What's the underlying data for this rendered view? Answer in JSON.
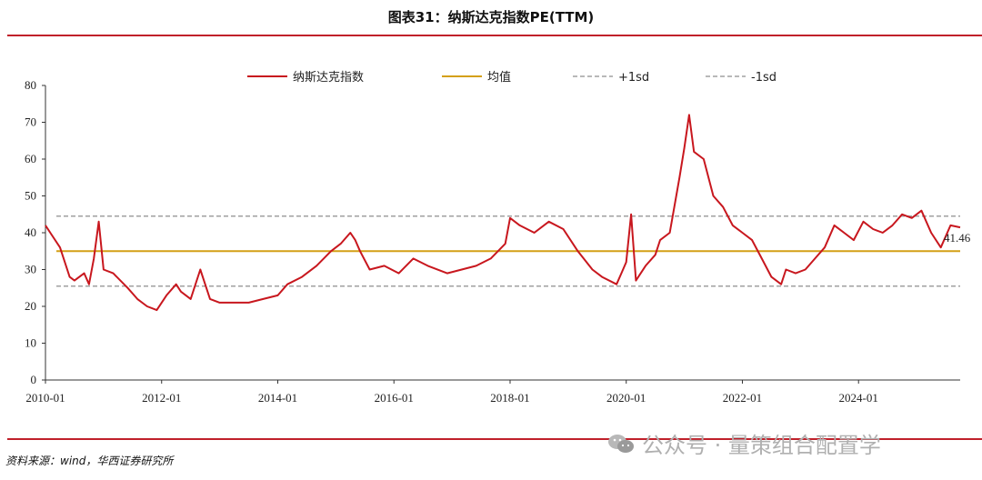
{
  "header": {
    "title": "图表31：纳斯达克指数PE(TTM)"
  },
  "footer": {
    "source": "资料来源：wind，华西证券研究所",
    "watermark": "公众号 · 量策组合配置学",
    "watermark_icon": "wechat-icon"
  },
  "colors": {
    "series": "#c8171e",
    "mean": "#d4a017",
    "sd": "#a0a0a0",
    "rule": "#c0202a"
  },
  "chart_data": {
    "type": "line",
    "title": "",
    "xlabel": "",
    "ylabel": "",
    "ylim": [
      0,
      80
    ],
    "yticks": [
      0,
      10,
      20,
      30,
      40,
      50,
      60,
      70,
      80
    ],
    "xlim": [
      "2010-01",
      "2025-10"
    ],
    "xticks": [
      "2010-01",
      "2012-01",
      "2014-01",
      "2016-01",
      "2018-01",
      "2020-01",
      "2022-01",
      "2024-01"
    ],
    "grid": false,
    "legend_position": "top",
    "legend": [
      "纳斯达克指数",
      "均值",
      "+1sd",
      "-1sd"
    ],
    "series": [
      {
        "name": "纳斯达克指数",
        "x": [
          "2010-01",
          "2010-02",
          "2010-04",
          "2010-06",
          "2010-07",
          "2010-09",
          "2010-10",
          "2010-11",
          "2010-12",
          "2011-01",
          "2011-03",
          "2011-06",
          "2011-08",
          "2011-10",
          "2011-12",
          "2012-02",
          "2012-04",
          "2012-05",
          "2012-07",
          "2012-09",
          "2012-11",
          "2013-01",
          "2013-04",
          "2013-07",
          "2013-10",
          "2014-01",
          "2014-03",
          "2014-06",
          "2014-09",
          "2014-12",
          "2015-02",
          "2015-04",
          "2015-05",
          "2015-06",
          "2015-08",
          "2015-11",
          "2016-02",
          "2016-05",
          "2016-08",
          "2016-12",
          "2017-03",
          "2017-06",
          "2017-09",
          "2017-12",
          "2018-01",
          "2018-03",
          "2018-06",
          "2018-09",
          "2018-12",
          "2019-03",
          "2019-06",
          "2019-08",
          "2019-11",
          "2019-12",
          "2020-01",
          "2020-02",
          "2020-03",
          "2020-05",
          "2020-07",
          "2020-08",
          "2020-10",
          "2020-12",
          "2021-01",
          "2021-02",
          "2021-03",
          "2021-05",
          "2021-07",
          "2021-09",
          "2021-11",
          "2022-01",
          "2022-03",
          "2022-05",
          "2022-07",
          "2022-09",
          "2022-10",
          "2022-12",
          "2023-02",
          "2023-04",
          "2023-06",
          "2023-08",
          "2023-10",
          "2023-12",
          "2024-02",
          "2024-04",
          "2024-06",
          "2024-08",
          "2024-10",
          "2024-12",
          "2025-02",
          "2025-04",
          "2025-06",
          "2025-08",
          "2025-10"
        ],
        "values": [
          42,
          40,
          36,
          28,
          27,
          29,
          26,
          33,
          43,
          30,
          29,
          25,
          22,
          20,
          19,
          23,
          26,
          24,
          22,
          30,
          22,
          21,
          21,
          21,
          22,
          23,
          26,
          28,
          31,
          35,
          37,
          40,
          38,
          35,
          30,
          31,
          29,
          33,
          31,
          29,
          30,
          31,
          33,
          37,
          44,
          42,
          40,
          43,
          41,
          35,
          30,
          28,
          26,
          29,
          32,
          45,
          27,
          31,
          34,
          38,
          40,
          55,
          63,
          72,
          62,
          60,
          50,
          47,
          42,
          40,
          38,
          33,
          28,
          26,
          30,
          29,
          30,
          33,
          36,
          42,
          40,
          38,
          43,
          41,
          40,
          42,
          45,
          44,
          46,
          40,
          36,
          42,
          41.46
        ]
      }
    ],
    "reference_lines": [
      {
        "name": "均值",
        "value": 35
      },
      {
        "name": "+1sd",
        "value": 44.5
      },
      {
        "name": "-1sd",
        "value": 25.5
      }
    ],
    "annotations": [
      {
        "text": "41.46",
        "x": "2025-10",
        "y": 41.46
      }
    ]
  }
}
